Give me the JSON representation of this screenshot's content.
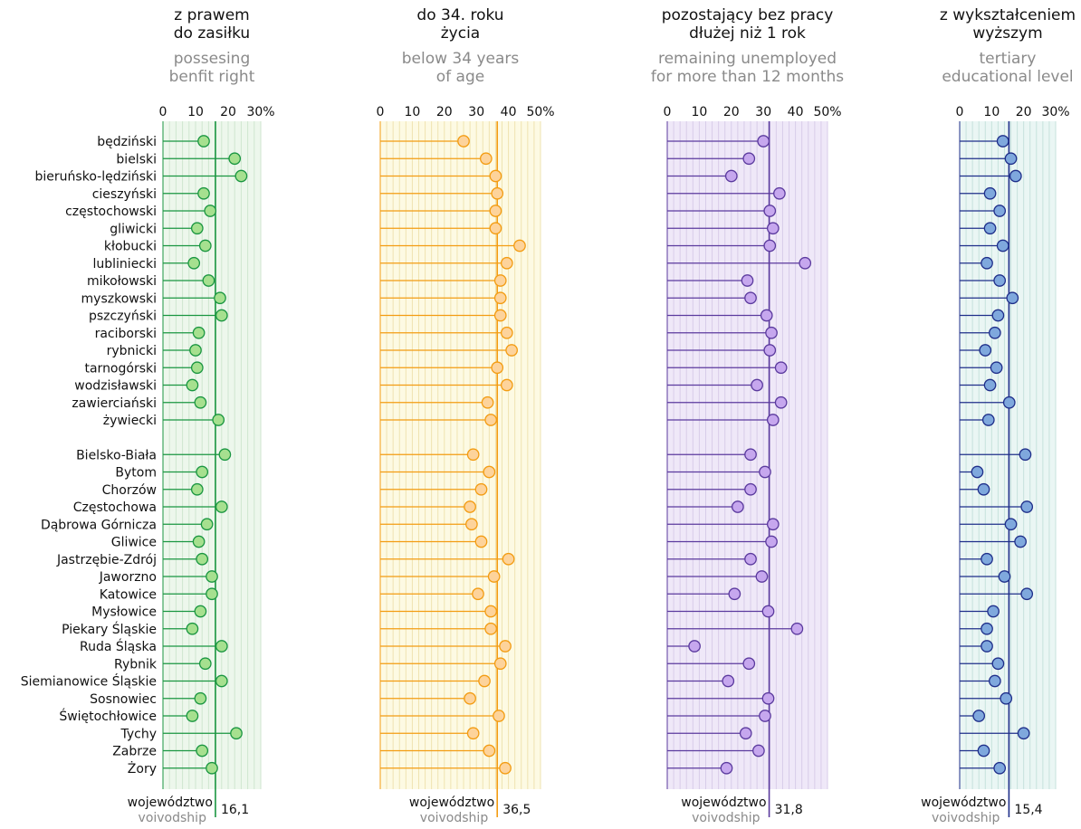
{
  "chart_data": {
    "type": "lollipop",
    "categories": [
      "będziński",
      "bielski",
      "bieruńsko-lędziński",
      "cieszyński",
      "częstochowski",
      "gliwicki",
      "kłobucki",
      "lubliniecki",
      "mikołowski",
      "myszkowski",
      "pszczyński",
      "raciborski",
      "rybnicki",
      "tarnogórski",
      "wodzisławski",
      "zawierciański",
      "żywiecki",
      "Bielsko-Biała",
      "Bytom",
      "Chorzów",
      "Częstochowa",
      "Dąbrowa Górnicza",
      "Gliwice",
      "Jastrzębie-Zdrój",
      "Jaworzno",
      "Katowice",
      "Mysłowice",
      "Piekary Śląskie",
      "Ruda Śląska",
      "Rybnik",
      "Siemianowice Śląskie",
      "Sosnowiec",
      "Świętochłowice",
      "Tychy",
      "Zabrze",
      "Żory"
    ],
    "group_split_after": 17,
    "panels": [
      {
        "title_pl": [
          "z prawem",
          "do zasiłku"
        ],
        "title_en": [
          "possesing",
          "benfit right"
        ],
        "xlim": [
          0,
          30
        ],
        "ticks": [
          "0",
          "10",
          "20",
          "30%"
        ],
        "tick_values": [
          0,
          10,
          20,
          30
        ],
        "average": 16.1,
        "average_label": "16,1",
        "avg_label_pl": "województwo",
        "avg_label_en": "voivodship",
        "colors": {
          "accent": "#1a9641",
          "fill": "#a6e08f",
          "bg": "#edf7ec",
          "grid": "#cfe6cf"
        },
        "values": [
          12.5,
          22,
          24,
          12.5,
          14.5,
          10.5,
          13,
          9.5,
          14,
          17.5,
          18,
          11,
          10,
          10.5,
          9,
          11.5,
          17,
          19,
          12,
          10.5,
          18,
          13.5,
          11,
          12,
          15,
          15,
          11.5,
          9,
          18,
          13,
          18,
          11.5,
          9,
          22.5,
          12,
          15
        ]
      },
      {
        "title_pl": [
          "do 34. roku",
          "życia"
        ],
        "title_en": [
          "below 34 years",
          "of age"
        ],
        "xlim": [
          0,
          50
        ],
        "ticks": [
          "0",
          "10",
          "20",
          "30",
          "40",
          "50%"
        ],
        "tick_values": [
          0,
          10,
          20,
          30,
          40,
          50
        ],
        "average": 36.5,
        "average_label": "36,5",
        "avg_label_pl": "województwo",
        "avg_label_en": "voivodship",
        "colors": {
          "accent": "#f39c12",
          "fill": "#fdd39b",
          "bg": "#fdfae3",
          "grid": "#efe3b0"
        },
        "values": [
          26,
          33,
          36,
          36.5,
          36,
          36,
          43.5,
          39.5,
          37.5,
          37.5,
          37.5,
          39.5,
          41,
          36.5,
          39.5,
          33.5,
          34.5,
          29,
          34,
          31.5,
          28,
          28.5,
          31.5,
          40,
          35.5,
          30.5,
          34.5,
          34.5,
          39,
          37.5,
          32.5,
          28,
          37,
          29,
          34,
          39
        ]
      },
      {
        "title_pl": [
          "pozostający bez pracy",
          "dłużej niż 1 rok"
        ],
        "title_en": [
          "remaining unemployed",
          "for more than 12 months"
        ],
        "xlim": [
          0,
          50
        ],
        "ticks": [
          "0",
          "10",
          "20",
          "30",
          "40",
          "50%"
        ],
        "tick_values": [
          0,
          10,
          20,
          30,
          40,
          50
        ],
        "average": 31.8,
        "average_label": "31,8",
        "avg_label_pl": "województwo",
        "avg_label_en": "voivodship",
        "colors": {
          "accent": "#5b3a9e",
          "fill": "#c6a7ee",
          "bg": "#efe8f8",
          "grid": "#d8cce9"
        },
        "values": [
          30,
          25.5,
          20,
          35,
          32,
          33,
          32,
          43,
          25,
          26,
          31,
          32.5,
          32,
          35.5,
          28,
          35.5,
          33,
          26,
          30.5,
          26,
          22,
          33,
          32.5,
          26,
          29.5,
          21,
          31.5,
          40.5,
          8.5,
          25.5,
          19,
          31.5,
          30.5,
          24.5,
          28.5,
          18.5
        ]
      },
      {
        "title_pl": [
          "z wykształceniem",
          "wyższym"
        ],
        "title_en": [
          "tertiary",
          "educational level"
        ],
        "xlim": [
          0,
          30
        ],
        "ticks": [
          "0",
          "10",
          "20",
          "30%"
        ],
        "tick_values": [
          0,
          10,
          20,
          30
        ],
        "average": 15.4,
        "average_label": "15,4",
        "avg_label_pl": "województwo",
        "avg_label_en": "voivodship",
        "colors": {
          "accent": "#1f2f8a",
          "fill": "#7fa8dd",
          "bg": "#eaf6f4",
          "grid": "#c6e2dc"
        },
        "values": [
          13.5,
          16,
          17.5,
          9.5,
          12.5,
          9.5,
          13.5,
          8.5,
          12.5,
          16.5,
          12,
          11,
          8,
          11.5,
          9.5,
          15.5,
          9,
          20.5,
          5.5,
          7.5,
          21,
          16,
          19,
          8.5,
          14,
          21,
          10.5,
          8.5,
          8.5,
          12,
          11,
          14.5,
          6,
          20,
          7.5,
          12.5
        ]
      }
    ]
  }
}
